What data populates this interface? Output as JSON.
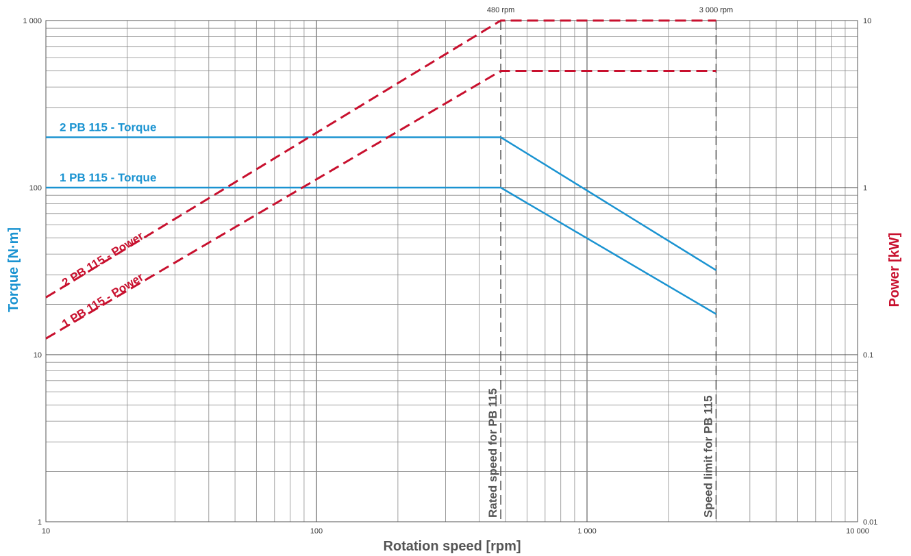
{
  "chart_data": {
    "type": "line",
    "xlabel": "Rotation speed [rpm]",
    "ylabel": "Torque [N·m]",
    "y2label": "Power [kW]",
    "x_scale": "log",
    "y_scale": "log",
    "y2_scale": "log",
    "xlim": [
      10,
      10000
    ],
    "ylim": [
      1,
      1000
    ],
    "y2lim": [
      0.01,
      10
    ],
    "grid": true,
    "x_ticks": [
      {
        "value": 10,
        "label": "10"
      },
      {
        "value": 100,
        "label": "100"
      },
      {
        "value": 1000,
        "label": "1 000"
      },
      {
        "value": 10000,
        "label": "10 000"
      }
    ],
    "y_ticks": [
      {
        "value": 1,
        "label": "1"
      },
      {
        "value": 10,
        "label": "10"
      },
      {
        "value": 100,
        "label": "100"
      },
      {
        "value": 1000,
        "label": "1 000"
      }
    ],
    "y2_ticks": [
      {
        "value": 0.01,
        "label": "0.01"
      },
      {
        "value": 0.1,
        "label": "0.1"
      },
      {
        "value": 1,
        "label": "1"
      },
      {
        "value": 10,
        "label": "10"
      }
    ],
    "series": [
      {
        "name": "2 PB 115 - Torque",
        "axis": "left",
        "style": "solid",
        "color": "#1a93d1",
        "x": [
          10,
          480,
          3000
        ],
        "y": [
          200,
          200,
          32
        ]
      },
      {
        "name": "1 PB 115 - Torque",
        "axis": "left",
        "style": "solid",
        "color": "#1a93d1",
        "x": [
          10,
          480,
          3000
        ],
        "y": [
          100,
          100,
          17.5
        ]
      },
      {
        "name": "2 PB 115 - Power",
        "axis": "right",
        "style": "dashed",
        "color": "#c8102e",
        "x": [
          10,
          480,
          3000
        ],
        "y": [
          0.22,
          10,
          10
        ]
      },
      {
        "name": "1 PB 115 - Power",
        "axis": "right",
        "style": "dashed",
        "color": "#c8102e",
        "x": [
          10,
          480,
          3000
        ],
        "y": [
          0.125,
          5,
          5
        ]
      }
    ],
    "reference_lines": [
      {
        "x": 480,
        "top_label": "480 rpm",
        "label": "Rated speed for PB 115"
      },
      {
        "x": 3000,
        "top_label": "3 000 rpm",
        "label": "Speed limit for PB 115"
      }
    ]
  }
}
